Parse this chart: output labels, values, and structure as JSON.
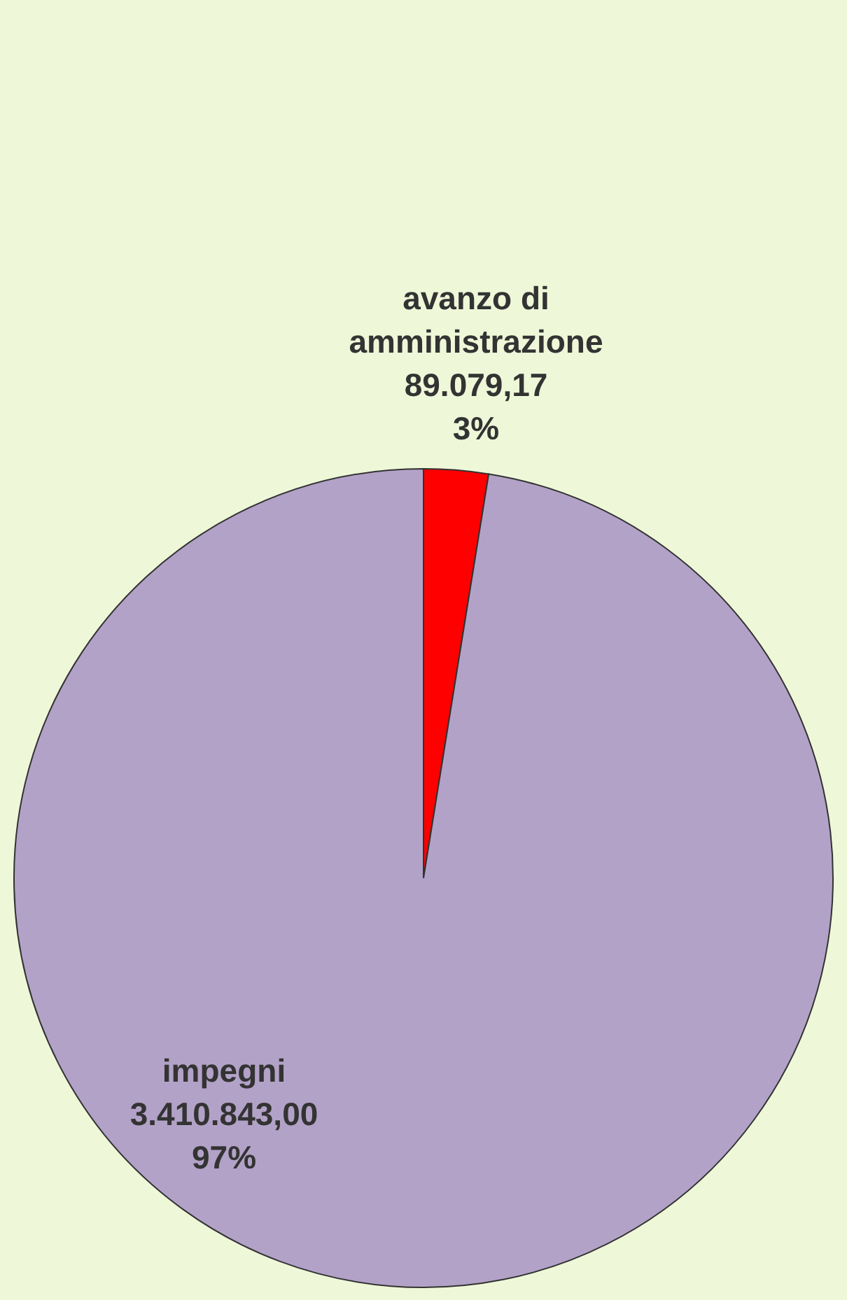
{
  "chart_data": {
    "type": "pie",
    "categories": [
      "avanzo di amministrazione",
      "impegni"
    ],
    "values": [
      89079.17,
      3410843.0
    ],
    "colors": [
      "#ff0000",
      "#b3a2c7"
    ],
    "value_labels": [
      "89.079,17\n3%",
      "3.410.843,00\n97%"
    ],
    "legend": false
  }
}
